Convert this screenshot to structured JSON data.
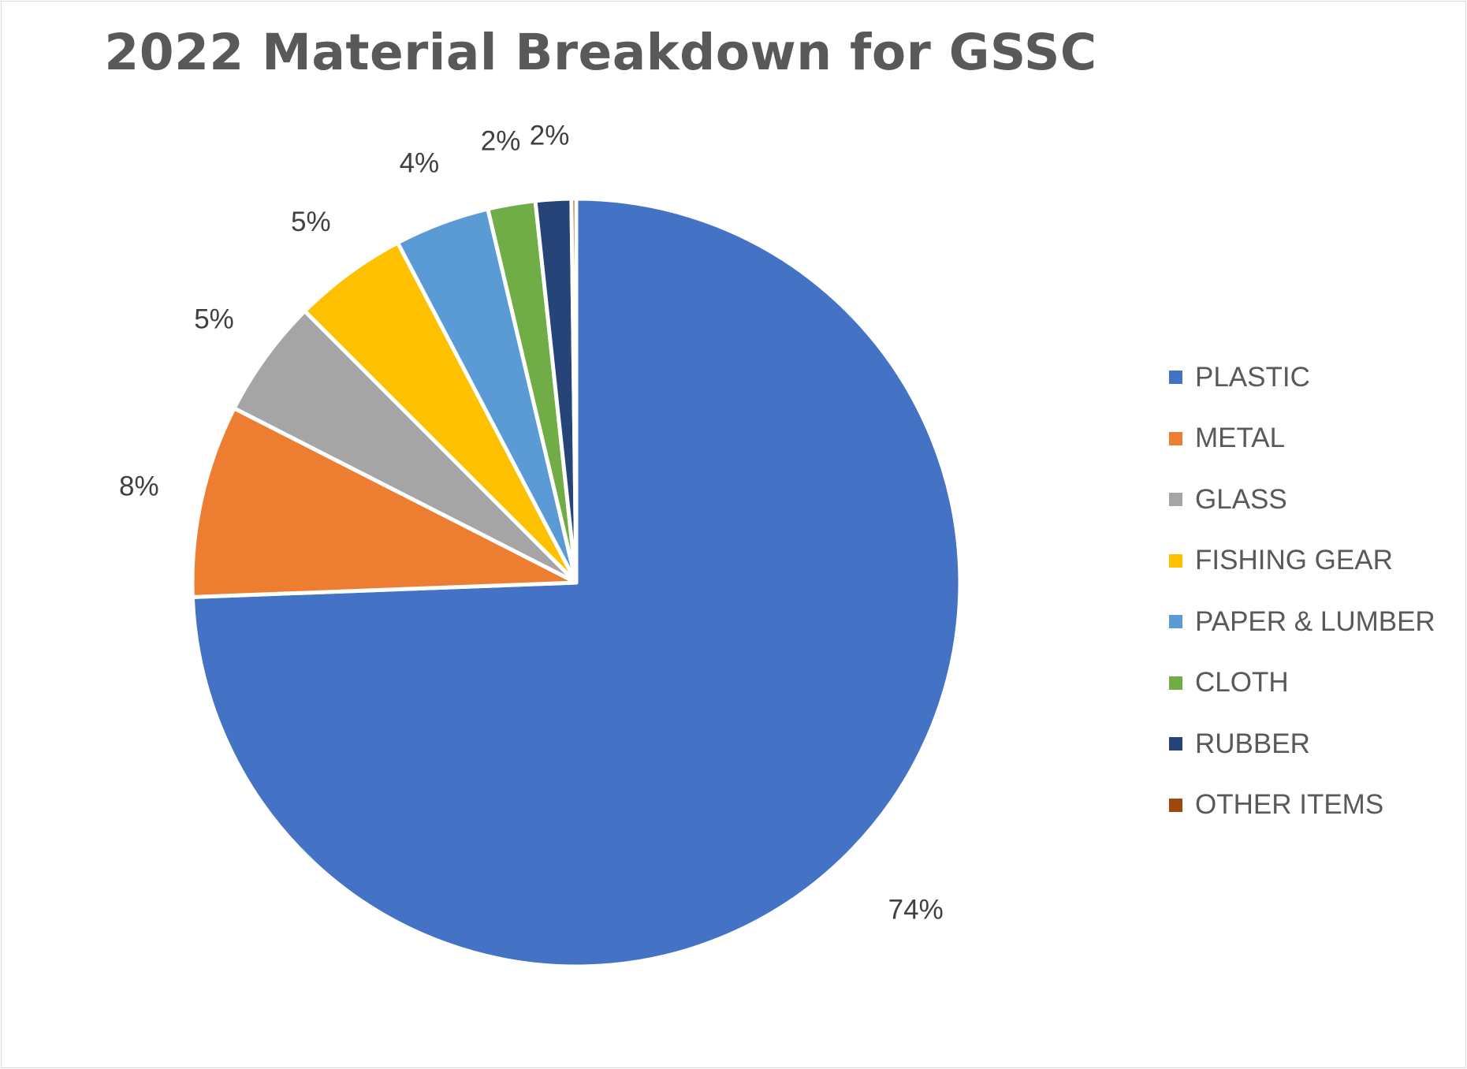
{
  "chart_data": {
    "type": "pie",
    "title": "2022 Material Breakdown for GSSC",
    "legend_position": "right",
    "categories": [
      "PLASTIC",
      "METAL",
      "GLASS",
      "FISHING GEAR",
      "PAPER & LUMBER",
      "CLOTH",
      "RUBBER",
      "OTHER ITEMS"
    ],
    "values": [
      74.4,
      8.1,
      5.0,
      4.8,
      4.0,
      2.0,
      1.5,
      0.2
    ],
    "labels": [
      "74%",
      "8%",
      "5%",
      "5%",
      "4%",
      "2%",
      "2%",
      ""
    ],
    "colors": [
      "#4472C4",
      "#ED7D31",
      "#A5A5A5",
      "#FFC000",
      "#5B9BD5",
      "#70AD47",
      "#264478",
      "#9E480E"
    ],
    "start_angle_deg": 0,
    "direction": "clockwise"
  }
}
